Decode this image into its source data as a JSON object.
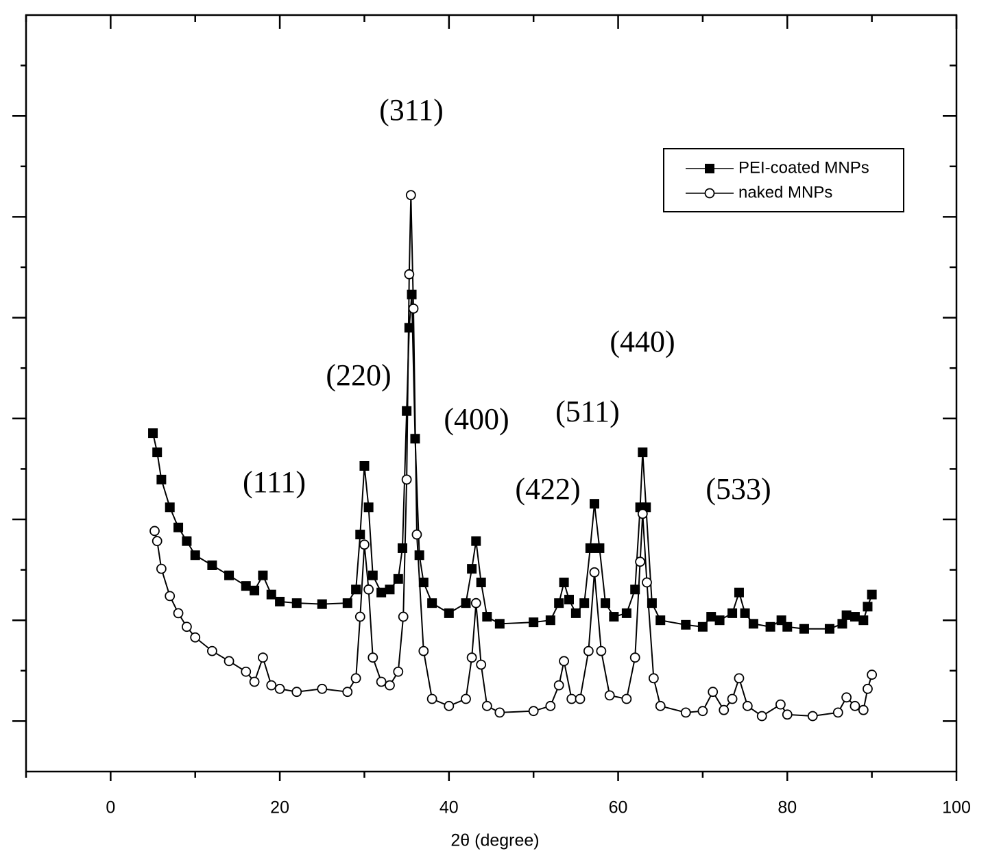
{
  "chart_data": {
    "type": "line",
    "xlabel": "2θ (degree)",
    "xlim": [
      -10,
      100
    ],
    "xticks": [
      0,
      20,
      40,
      60,
      80,
      100
    ],
    "xminorticks": [
      -10,
      10,
      30,
      50,
      70,
      90
    ],
    "ylim": [
      0,
      15
    ],
    "yticks": [
      1,
      3,
      5,
      7,
      9,
      11,
      13
    ],
    "yminorticks": [
      2,
      4,
      6,
      8,
      10,
      12,
      14
    ],
    "ytick_labels": false,
    "legend": "upper right",
    "annotations": [
      "(311)",
      "(220)",
      "(111)",
      "(400)",
      "(511)",
      "(440)",
      "(422)",
      "(533)"
    ],
    "series": [
      {
        "name": "PEI-coated MNPs",
        "color": "#000000",
        "marker": "square",
        "x": [
          5,
          5.5,
          6,
          7,
          8,
          9,
          10,
          12,
          14,
          16,
          17,
          18,
          19,
          20,
          22,
          25,
          28,
          29,
          29.5,
          30,
          30.5,
          31,
          32,
          33,
          34,
          34.5,
          35,
          35.3,
          35.6,
          36,
          36.5,
          37,
          38,
          40,
          42,
          42.7,
          43.2,
          43.8,
          44.5,
          46,
          50,
          52,
          53,
          53.6,
          54.2,
          55,
          56,
          56.7,
          57.2,
          57.8,
          58.5,
          59.5,
          61,
          62,
          62.6,
          62.9,
          63.3,
          64,
          65,
          68,
          70,
          71,
          72,
          73.5,
          74.3,
          75,
          76,
          78,
          79.3,
          80,
          82,
          85,
          86.5,
          87,
          88,
          89,
          89.5,
          90
        ],
        "values": [
          6.71,
          6.33,
          5.79,
          5.24,
          4.84,
          4.57,
          4.29,
          4.09,
          3.89,
          3.68,
          3.59,
          3.89,
          3.51,
          3.37,
          3.34,
          3.32,
          3.34,
          3.61,
          4.7,
          6.06,
          5.24,
          3.89,
          3.55,
          3.61,
          3.82,
          4.43,
          7.15,
          8.8,
          9.46,
          6.6,
          4.29,
          3.75,
          3.34,
          3.14,
          3.34,
          4.02,
          4.57,
          3.75,
          3.07,
          2.93,
          2.96,
          3.0,
          3.34,
          3.75,
          3.41,
          3.14,
          3.34,
          4.43,
          5.31,
          4.43,
          3.34,
          3.07,
          3.14,
          3.61,
          5.24,
          6.33,
          5.24,
          3.34,
          3.0,
          2.91,
          2.87,
          3.07,
          3.0,
          3.14,
          3.55,
          3.14,
          2.93,
          2.87,
          3.0,
          2.87,
          2.83,
          2.83,
          2.93,
          3.1,
          3.07,
          3.0,
          3.27,
          3.51
        ]
      },
      {
        "name": "naked MNPs",
        "color": "#000000",
        "marker": "circle",
        "x": [
          5.2,
          5.5,
          6,
          7,
          8,
          9,
          10,
          12,
          14,
          16,
          17,
          18,
          19,
          20,
          22,
          25,
          28,
          29,
          29.5,
          30,
          30.5,
          31,
          32,
          33,
          34,
          34.6,
          35,
          35.3,
          35.5,
          35.8,
          36.2,
          37,
          38,
          40,
          42,
          42.7,
          43.2,
          43.8,
          44.5,
          46,
          50,
          52,
          53,
          53.6,
          54.5,
          55.5,
          56.5,
          57.2,
          58,
          59,
          61,
          62,
          62.6,
          62.9,
          63.4,
          64.2,
          65,
          68,
          70,
          71.2,
          72.5,
          73.5,
          74.3,
          75.3,
          77,
          79.2,
          80,
          83,
          86,
          87,
          88,
          89,
          89.5,
          90
        ],
        "values": [
          4.77,
          4.57,
          4.02,
          3.48,
          3.14,
          2.87,
          2.66,
          2.39,
          2.19,
          1.98,
          1.78,
          2.26,
          1.71,
          1.64,
          1.58,
          1.64,
          1.58,
          1.85,
          3.07,
          4.5,
          3.61,
          2.26,
          1.78,
          1.71,
          1.98,
          3.07,
          5.79,
          9.86,
          11.43,
          9.18,
          4.7,
          2.39,
          1.44,
          1.3,
          1.44,
          2.26,
          3.34,
          2.12,
          1.3,
          1.17,
          1.2,
          1.3,
          1.71,
          2.19,
          1.44,
          1.44,
          2.39,
          3.95,
          2.39,
          1.51,
          1.44,
          2.26,
          4.16,
          5.11,
          3.75,
          1.85,
          1.3,
          1.17,
          1.2,
          1.58,
          1.22,
          1.44,
          1.85,
          1.3,
          1.1,
          1.33,
          1.13,
          1.1,
          1.17,
          1.47,
          1.3,
          1.22,
          1.64,
          1.92
        ]
      }
    ]
  }
}
